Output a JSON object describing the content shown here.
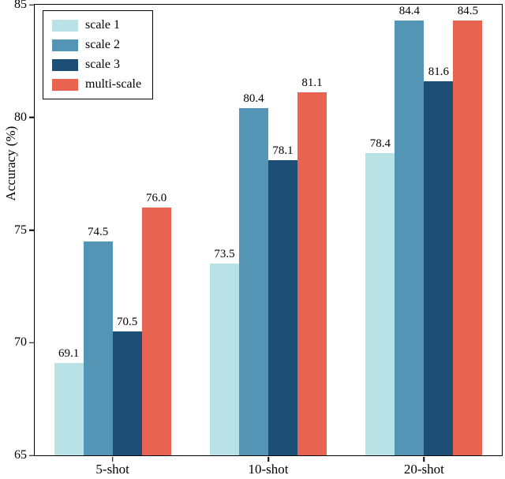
{
  "chart_data": {
    "type": "bar",
    "title": "",
    "xlabel": "",
    "ylabel": "Accuracy (%)",
    "ylim": [
      65,
      85
    ],
    "yticks": [
      65,
      70,
      75,
      80,
      85
    ],
    "grid": false,
    "legend_position": "upper left",
    "bar_labels": true,
    "categories": [
      "5-shot",
      "10-shot",
      "20-shot"
    ],
    "series": [
      {
        "name": "scale 1",
        "color": "#b9e2e6",
        "values": [
          69.1,
          73.5,
          78.4
        ]
      },
      {
        "name": "scale 2",
        "color": "#5494b4",
        "values": [
          74.5,
          80.4,
          84.4
        ]
      },
      {
        "name": "scale 3",
        "color": "#1d4f76",
        "values": [
          70.5,
          78.1,
          81.6
        ]
      },
      {
        "name": "multi-scale",
        "color": "#e96450",
        "values": [
          76.0,
          81.1,
          84.5
        ]
      }
    ]
  },
  "colors": {
    "axis": "#000000",
    "background": "#ffffff"
  }
}
